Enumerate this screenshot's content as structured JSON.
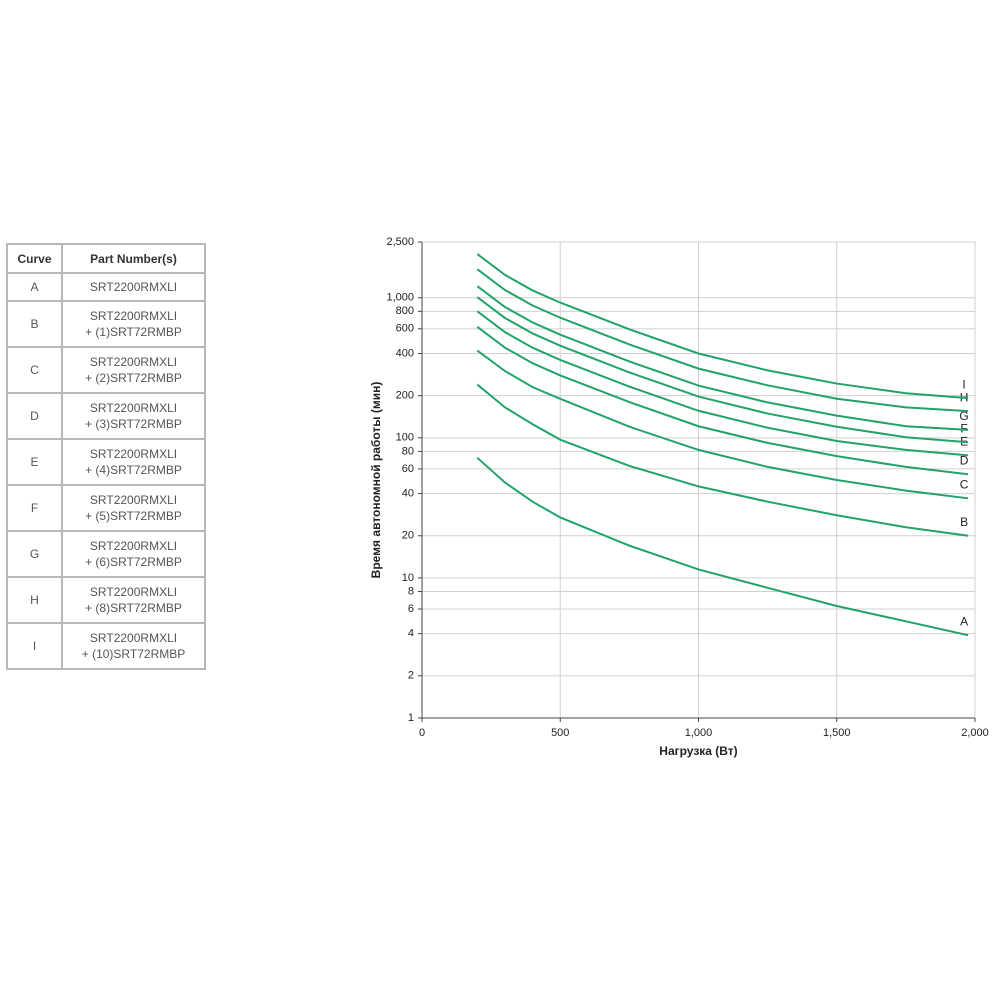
{
  "table": {
    "headers": [
      "Curve",
      "Part Number(s)"
    ],
    "rows": [
      [
        "A",
        [
          "SRT2200RMXLI"
        ]
      ],
      [
        "B",
        [
          "SRT2200RMXLI",
          "+ (1)SRT72RMBP"
        ]
      ],
      [
        "C",
        [
          "SRT2200RMXLI",
          "+ (2)SRT72RMBP"
        ]
      ],
      [
        "D",
        [
          "SRT2200RMXLI",
          "+ (3)SRT72RMBP"
        ]
      ],
      [
        "E",
        [
          "SRT2200RMXLI",
          "+ (4)SRT72RMBP"
        ]
      ],
      [
        "F",
        [
          "SRT2200RMXLI",
          "+ (5)SRT72RMBP"
        ]
      ],
      [
        "G",
        [
          "SRT2200RMXLI",
          "+ (6)SRT72RMBP"
        ]
      ],
      [
        "H",
        [
          "SRT2200RMXLI",
          "+ (8)SRT72RMBP"
        ]
      ],
      [
        "I",
        [
          "SRT2200RMXLI",
          "+ (10)SRT72RMBP"
        ]
      ]
    ]
  },
  "chart_data": {
    "type": "line",
    "x_label": "Нагрузка (Вт)",
    "y_label": "Время автономной работы (мин)",
    "log_y": true,
    "grid": true,
    "xlim": [
      0,
      2000
    ],
    "xticks": [
      0,
      500,
      {
        "value": 1000,
        "label": "1,000"
      },
      {
        "value": 1500,
        "label": "1,500"
      },
      {
        "value": 2000,
        "label": "2,000"
      }
    ],
    "ylim": [
      1,
      2500
    ],
    "yticks": [
      1,
      2,
      4,
      6,
      8,
      10,
      20,
      40,
      60,
      80,
      100,
      200,
      400,
      600,
      800,
      {
        "value": 1000,
        "label": "1,000"
      },
      {
        "value": 2500,
        "label": "2,500"
      }
    ],
    "x": [
      200,
      300,
      400,
      500,
      750,
      1000,
      1250,
      1500,
      1750,
      1975
    ],
    "series": [
      {
        "name": "A",
        "color": "#22a36a",
        "values": [
          72,
          48,
          35,
          27,
          17,
          11.5,
          8.5,
          6.3,
          4.9,
          3.9
        ]
      },
      {
        "name": "B",
        "color": "#22a36a",
        "values": [
          240,
          165,
          125,
          97,
          63,
          45,
          35,
          28,
          23,
          20
        ]
      },
      {
        "name": "C",
        "color": "#22a36a",
        "values": [
          420,
          300,
          230,
          190,
          120,
          82,
          62,
          50,
          42,
          37
        ]
      },
      {
        "name": "D",
        "color": "#22a36a",
        "values": [
          620,
          440,
          341,
          279,
          180,
          121,
          92,
          74,
          62,
          55
        ]
      },
      {
        "name": "E",
        "color": "#22a36a",
        "values": [
          800,
          568,
          440,
          360,
          232,
          156,
          118,
          95,
          82,
          75
        ]
      },
      {
        "name": "F",
        "color": "#22a36a",
        "values": [
          1010,
          717,
          556,
          455,
          293,
          197,
          149,
          120,
          101,
          93
        ]
      },
      {
        "name": "G",
        "color": "#22a36a",
        "values": [
          1210,
          859,
          666,
          545,
          351,
          236,
          179,
          144,
          121,
          114
        ]
      },
      {
        "name": "H",
        "color": "#22a36a",
        "values": [
          1600,
          1136,
          880,
          720,
          464,
          312,
          237,
          190,
          165,
          155
        ]
      },
      {
        "name": "I",
        "color": "#22a36a",
        "values": [
          2050,
          1456,
          1128,
          923,
          595,
          400,
          303,
          244,
          208,
          192
        ]
      }
    ]
  }
}
